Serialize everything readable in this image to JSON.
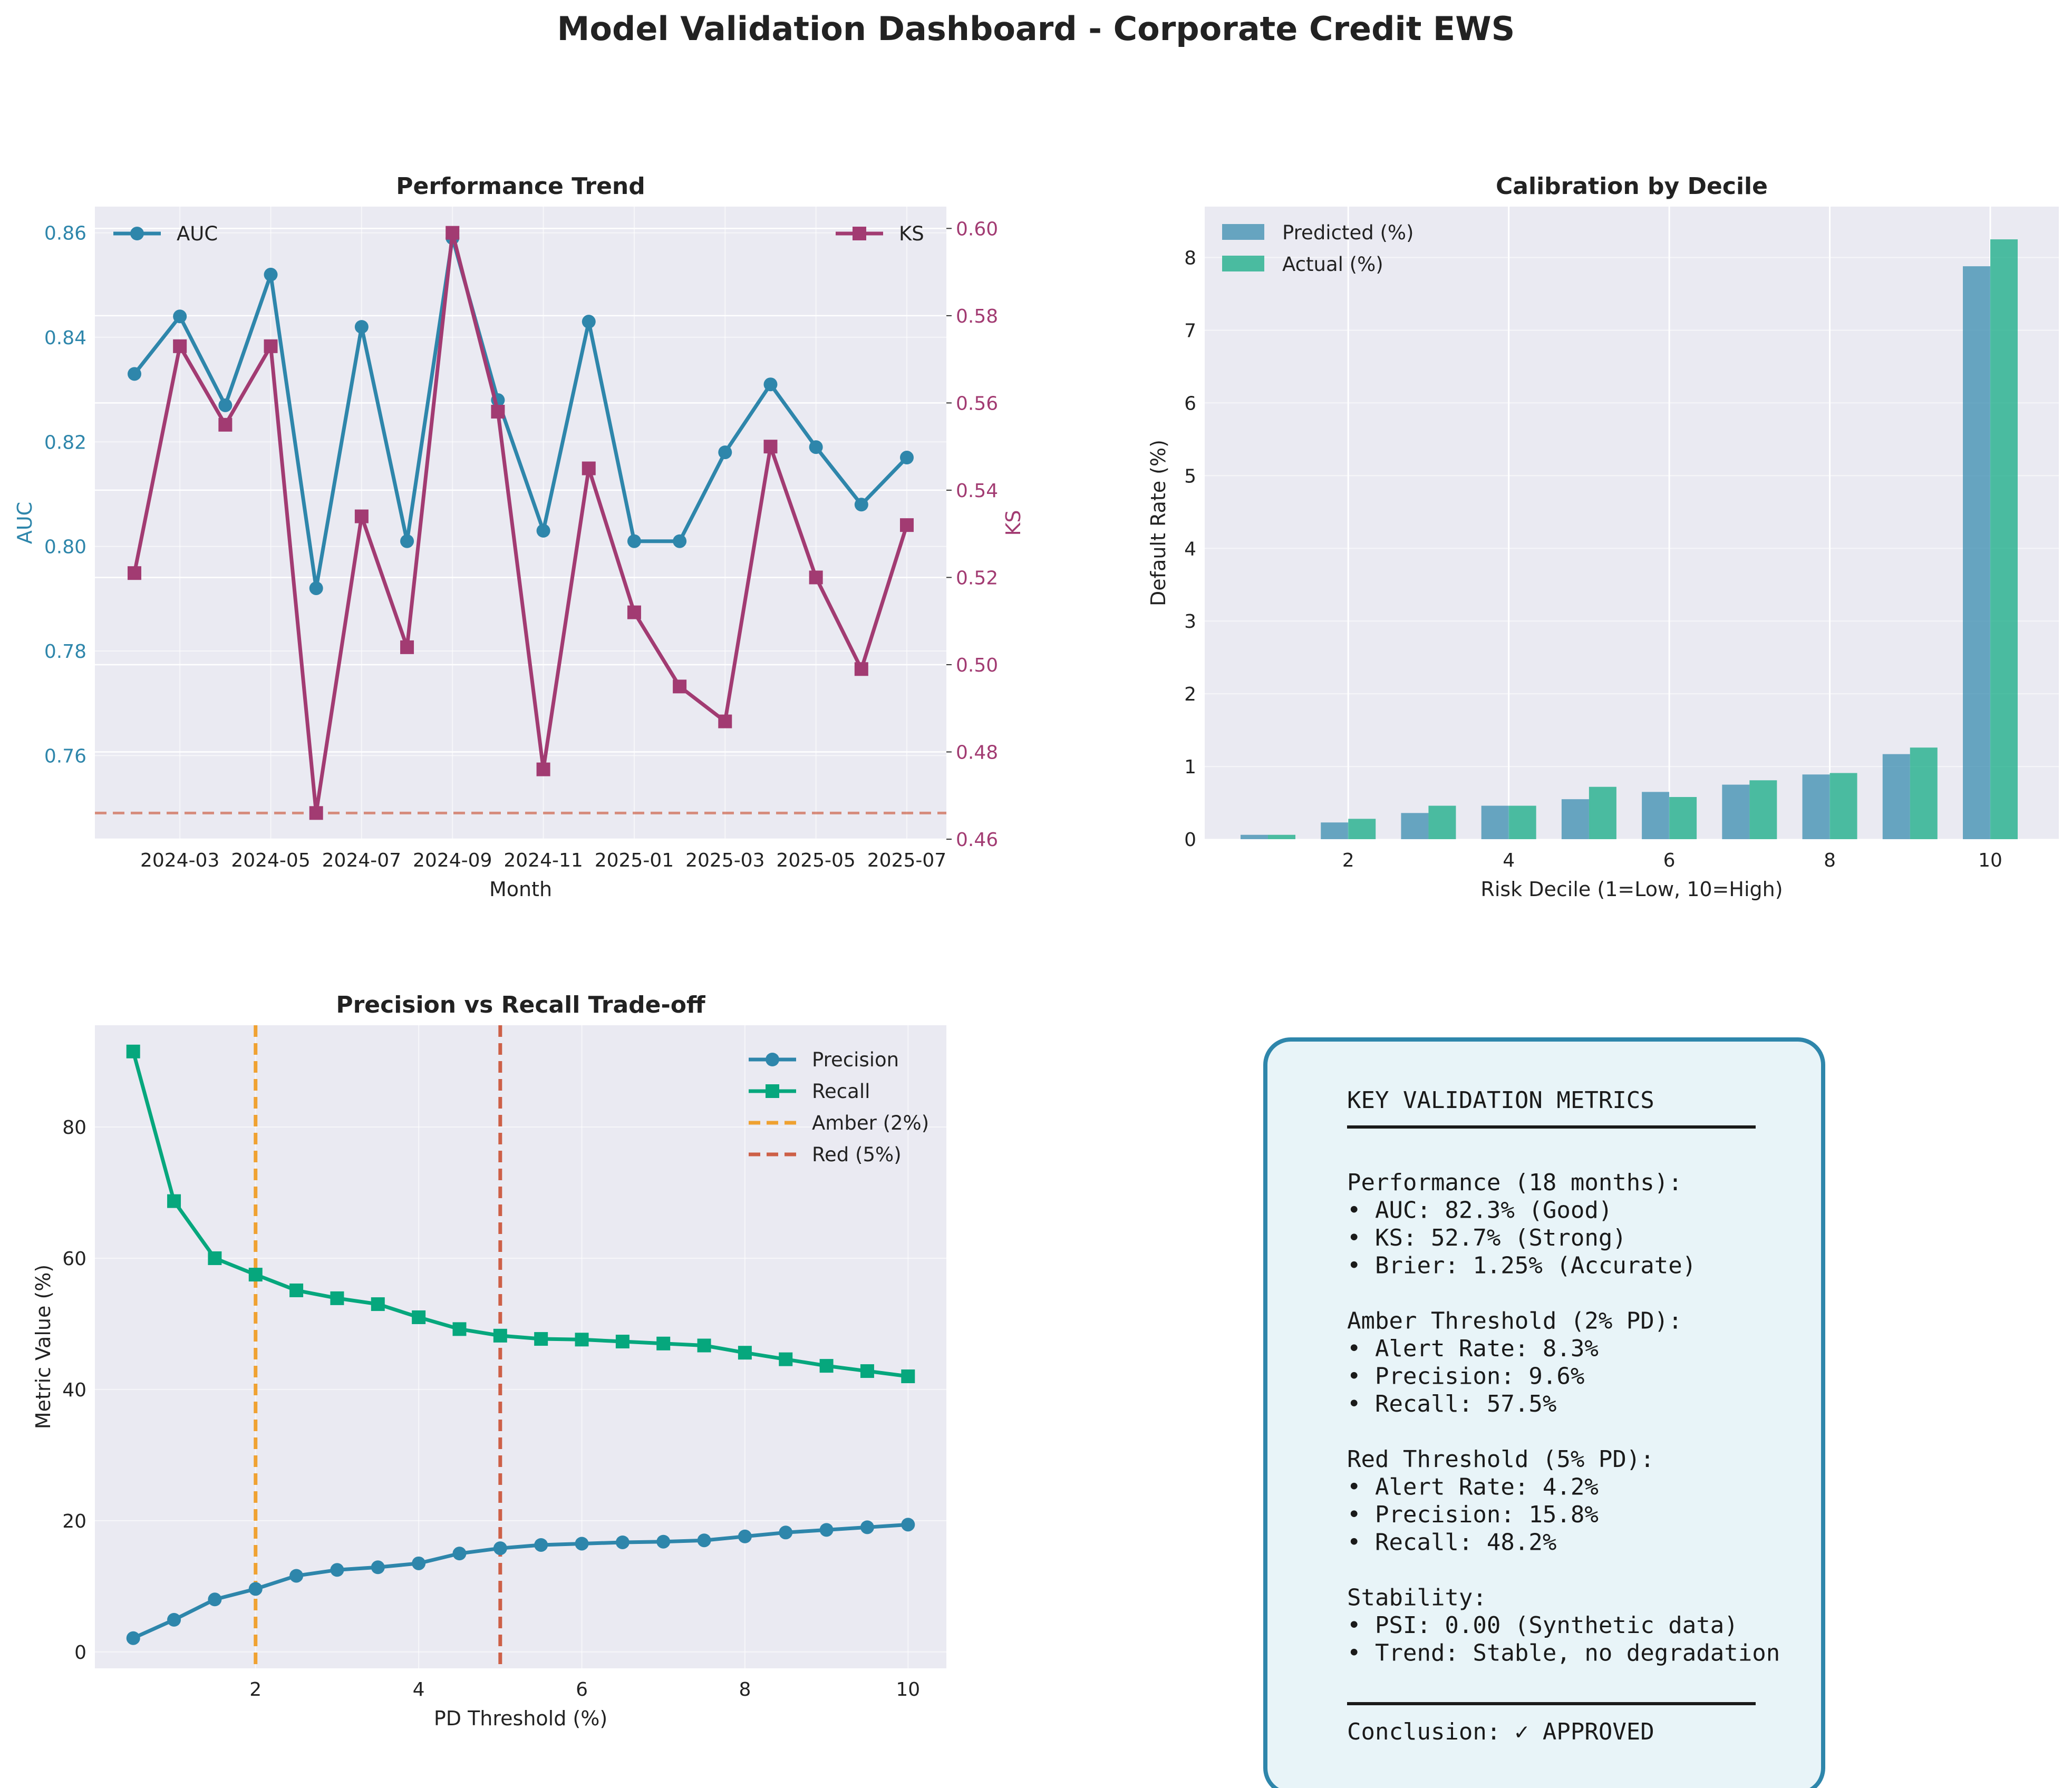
{
  "title": "Model Validation Dashboard - Corporate Credit EWS",
  "colors": {
    "auc": "#2e86ab",
    "ks": "#a23b72",
    "predicted": "#2e86ab",
    "actual": "#06a77d",
    "precision": "#2e86ab",
    "recall": "#06a77d",
    "amber": "#f18f01",
    "red": "#c73e1d",
    "panel_bg": "#eaeaf2",
    "box_edge": "#2e86ab",
    "box_fill": "#e8f4f8"
  },
  "chart_data": [
    {
      "id": "performance-trend",
      "type": "line",
      "title": "Performance Trend",
      "xlabel": "Month",
      "ylabel": "AUC",
      "y2label": "KS",
      "x": [
        "2024-02",
        "2024-03",
        "2024-04",
        "2024-05",
        "2024-06",
        "2024-07",
        "2024-08",
        "2024-09",
        "2024-10",
        "2024-11",
        "2024-12",
        "2025-01",
        "2025-02",
        "2025-03",
        "2025-04",
        "2025-05",
        "2025-06",
        "2025-07"
      ],
      "x_tick_labels": [
        "2024-03",
        "2024-05",
        "2024-07",
        "2024-09",
        "2024-11",
        "2025-01",
        "2025-03",
        "2025-05",
        "2025-07"
      ],
      "ylim": [
        0.744,
        0.865
      ],
      "y_ticks": [
        0.76,
        0.78,
        0.8,
        0.82,
        0.84,
        0.86
      ],
      "y2lim": [
        0.46,
        0.605
      ],
      "y2_ticks": [
        0.46,
        0.48,
        0.5,
        0.52,
        0.54,
        0.56,
        0.58,
        0.6
      ],
      "series": [
        {
          "name": "AUC",
          "axis": "left",
          "marker": "circle",
          "values": [
            0.833,
            0.844,
            0.827,
            0.852,
            0.792,
            0.842,
            0.801,
            0.859,
            0.828,
            0.803,
            0.843,
            0.801,
            0.801,
            0.818,
            0.831,
            0.819,
            0.808,
            0.817
          ]
        },
        {
          "name": "KS",
          "axis": "right",
          "marker": "square",
          "values": [
            0.521,
            0.573,
            0.555,
            0.573,
            0.466,
            0.534,
            0.504,
            0.599,
            0.558,
            0.476,
            0.545,
            0.512,
            0.495,
            0.487,
            0.55,
            0.52,
            0.499,
            0.532
          ]
        }
      ],
      "reference_line": {
        "axis": "right",
        "value": 0.466,
        "style": "dashed"
      },
      "legend": [
        "top-left",
        "top-right"
      ],
      "grid": true
    },
    {
      "id": "calibration-by-decile",
      "type": "bar",
      "title": "Calibration by Decile",
      "xlabel": "Risk Decile (1=Low, 10=High)",
      "ylabel": "Default Rate (%)",
      "categories": [
        1,
        2,
        3,
        4,
        5,
        6,
        7,
        8,
        9,
        10
      ],
      "x_ticks": [
        2,
        4,
        6,
        8,
        10
      ],
      "ylim": [
        0,
        8.7
      ],
      "y_ticks": [
        0,
        1,
        2,
        3,
        4,
        5,
        6,
        7,
        8
      ],
      "series": [
        {
          "name": "Predicted (%)",
          "values": [
            0.06,
            0.23,
            0.36,
            0.46,
            0.55,
            0.65,
            0.75,
            0.89,
            1.17,
            7.88
          ]
        },
        {
          "name": "Actual (%)",
          "values": [
            0.06,
            0.28,
            0.46,
            0.46,
            0.72,
            0.58,
            0.81,
            0.91,
            1.26,
            8.25
          ]
        }
      ],
      "legend": "top-left",
      "grid": true
    },
    {
      "id": "precision-recall-tradeoff",
      "type": "line",
      "title": "Precision vs Recall Trade-off",
      "xlabel": "PD Threshold (%)",
      "ylabel": "Metric Value (%)",
      "x": [
        0.5,
        1.0,
        1.5,
        2.0,
        2.5,
        3.0,
        3.5,
        4.0,
        4.5,
        5.0,
        5.5,
        6.0,
        6.5,
        7.0,
        7.5,
        8.0,
        8.5,
        9.0,
        9.5,
        10.0
      ],
      "x_ticks": [
        2,
        4,
        6,
        8,
        10
      ],
      "xlim": [
        0.03,
        10.47
      ],
      "ylim": [
        -2.5,
        95.5
      ],
      "y_ticks": [
        0,
        20,
        40,
        60,
        80
      ],
      "series": [
        {
          "name": "Precision",
          "marker": "circle",
          "values": [
            2.1,
            4.9,
            8.0,
            9.6,
            11.6,
            12.5,
            12.9,
            13.5,
            15.0,
            15.8,
            16.3,
            16.5,
            16.7,
            16.8,
            17.0,
            17.6,
            18.2,
            18.6,
            19.0,
            19.4
          ]
        },
        {
          "name": "Recall",
          "marker": "square",
          "values": [
            91.5,
            68.7,
            60.0,
            57.5,
            55.1,
            53.9,
            53.0,
            51.0,
            49.2,
            48.2,
            47.7,
            47.6,
            47.3,
            47.0,
            46.7,
            45.6,
            44.6,
            43.6,
            42.8,
            42.0
          ]
        }
      ],
      "vlines": [
        {
          "name": "Amber (2%)",
          "x": 2,
          "color_key": "amber"
        },
        {
          "name": "Red (5%)",
          "x": 5,
          "color_key": "red"
        }
      ],
      "legend": "top-right",
      "grid": true
    }
  ],
  "metrics_box": {
    "heading": "KEY VALIDATION METRICS",
    "lines": [
      "Performance (18 months):",
      "• AUC: 82.3% (Good)",
      "• KS: 52.7% (Strong)",
      "• Brier: 1.25% (Accurate)",
      "",
      "Amber Threshold (2% PD):",
      "• Alert Rate: 8.3%",
      "• Precision: 9.6%",
      "• Recall: 57.5%",
      "",
      "Red Threshold (5% PD):",
      "• Alert Rate: 4.2%",
      "• Precision: 15.8%",
      "• Recall: 48.2%",
      "",
      "Stability:",
      "• PSI: 0.00 (Synthetic data)",
      "• Trend: Stable, no degradation"
    ],
    "conclusion": "Conclusion: ✓ APPROVED"
  }
}
